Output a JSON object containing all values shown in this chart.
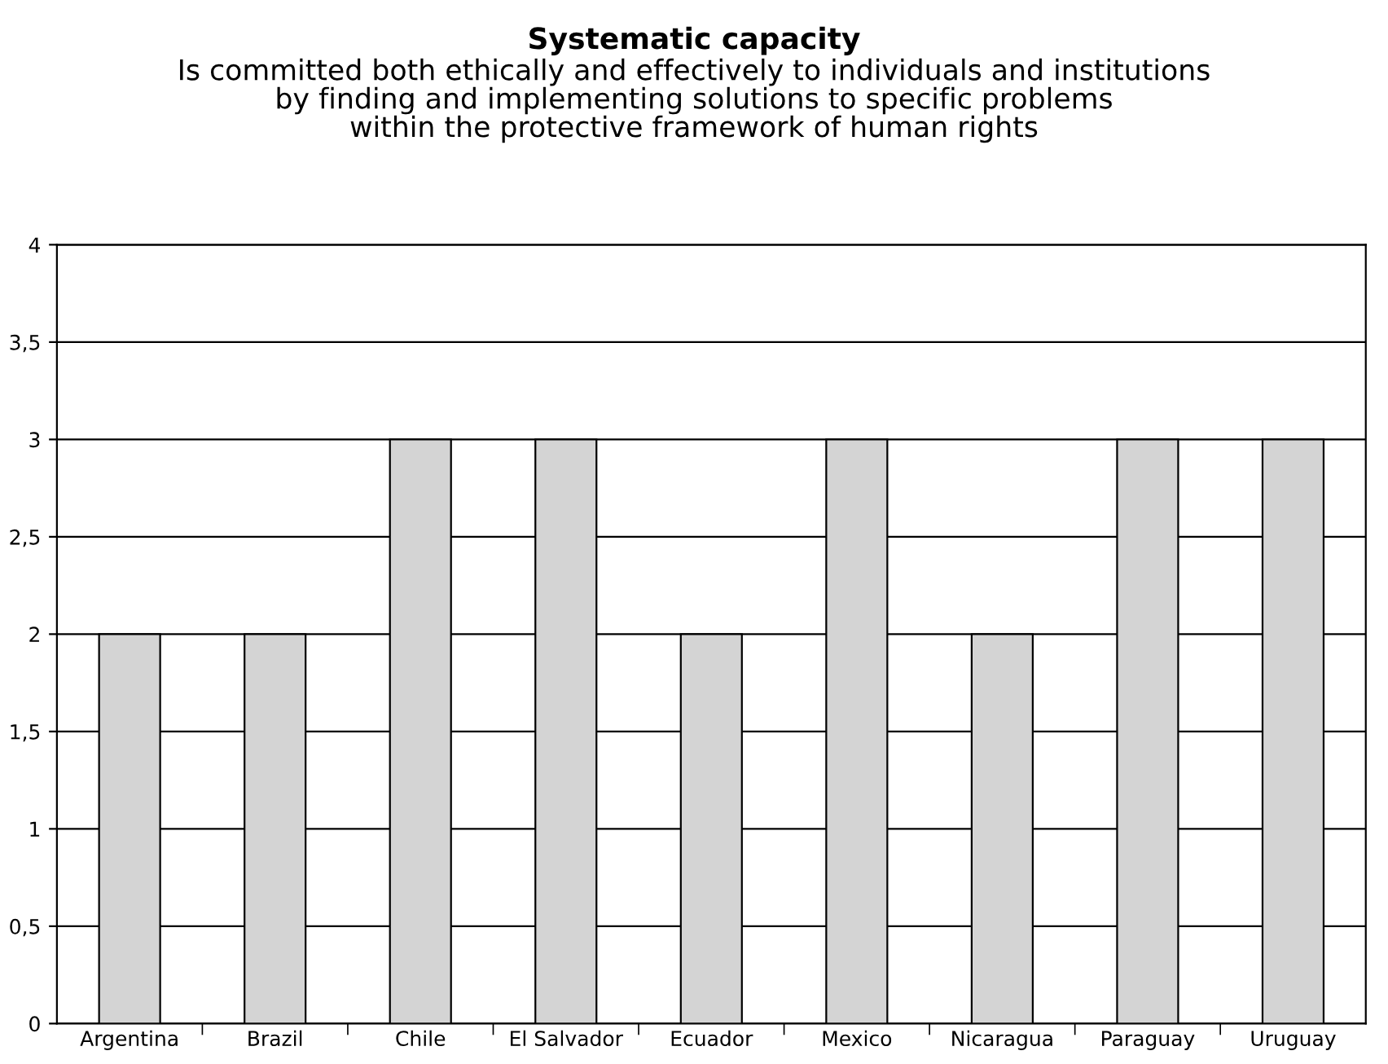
{
  "chart_data": {
    "type": "bar",
    "title": "Systematic capacity",
    "subtitle": "Is committed both ethically and effectively to individuals and institutions\nby finding and implementing solutions to specific problems\nwithin the protective framework of human rights",
    "categories": [
      "Argentina",
      "Brazil",
      "Chile",
      "El Salvador",
      "Ecuador",
      "Mexico",
      "Nicaragua",
      "Paraguay",
      "Uruguay"
    ],
    "values": [
      2,
      2,
      3,
      3,
      2,
      3,
      2,
      3,
      3
    ],
    "color": "#d4d4d4",
    "ylim": [
      0,
      4
    ],
    "yticks": [
      0,
      {
        "value": 0.5,
        "label": "0,5"
      },
      1,
      {
        "value": 1.5,
        "label": "1,5"
      },
      2,
      {
        "value": 2.5,
        "label": "2,5"
      },
      3,
      {
        "value": 3.5,
        "label": "3,5"
      },
      4
    ],
    "grid": "y",
    "legend": false
  }
}
